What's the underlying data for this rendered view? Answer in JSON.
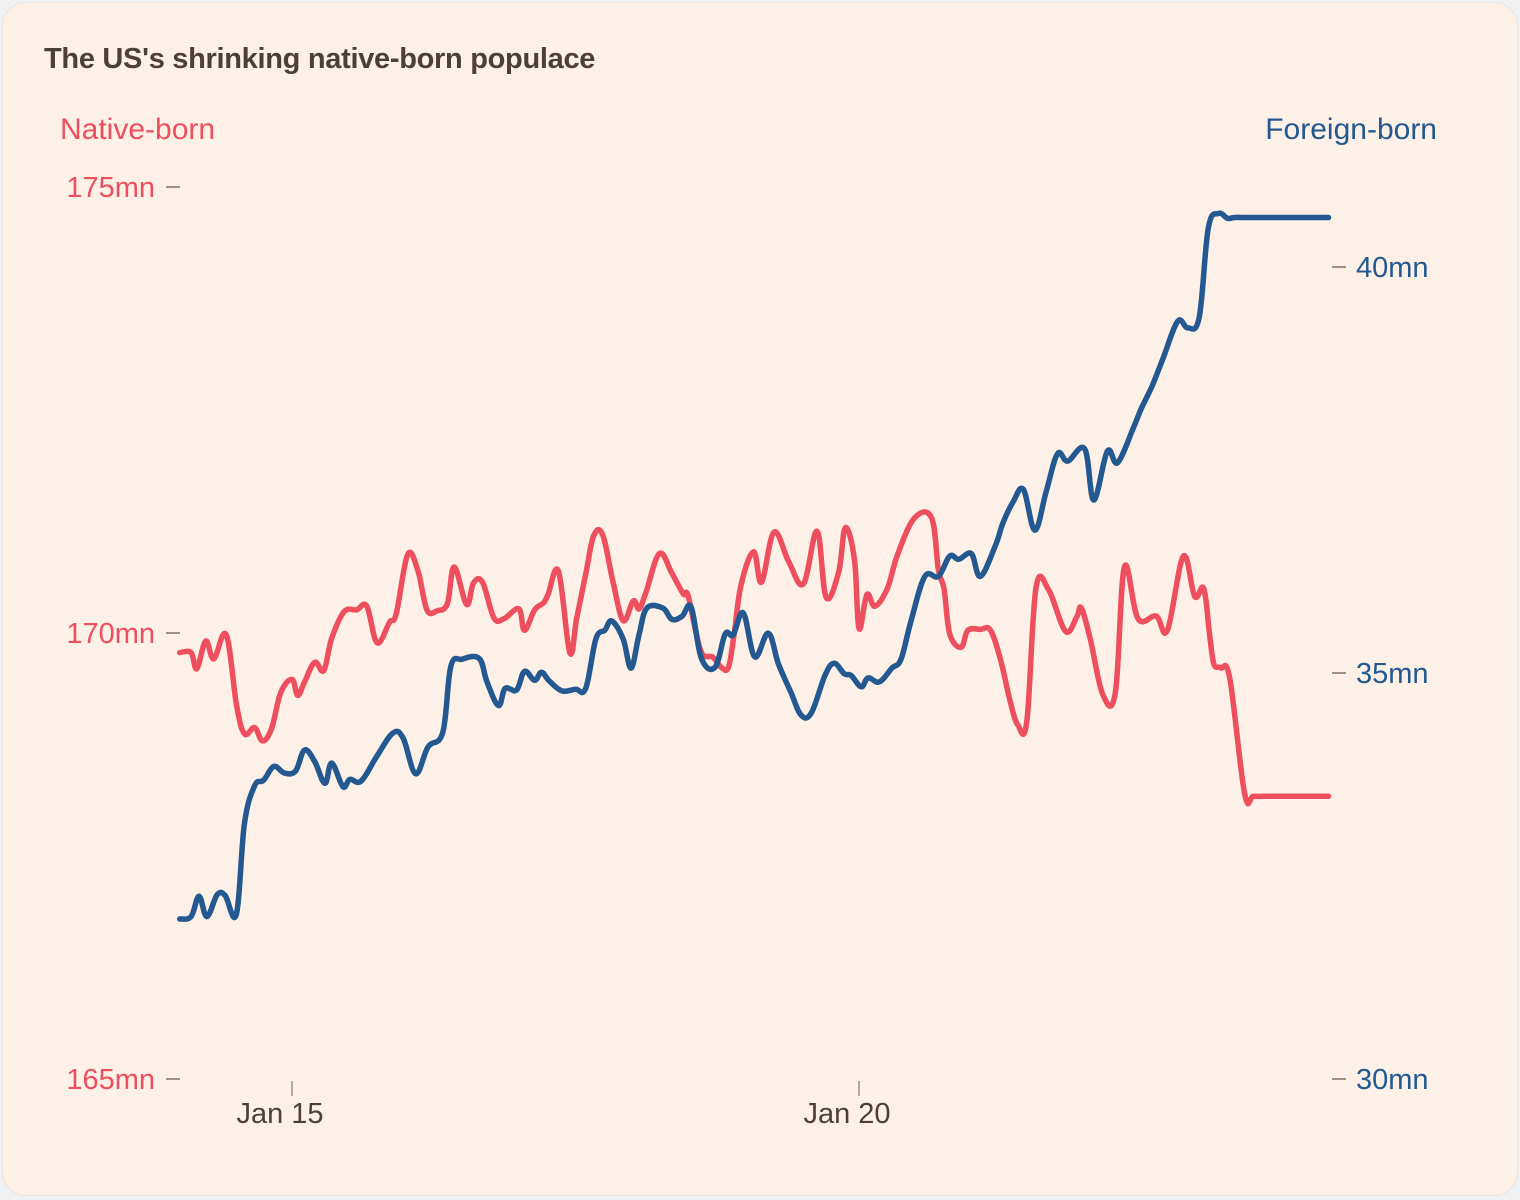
{
  "chart_data": {
    "type": "line",
    "title": "The US's shrinking native-born populace",
    "xlabel": "",
    "x_ticks": [
      "Jan 15",
      "Jan 20"
    ],
    "x_tick_days": [
      0,
      5
    ],
    "x_range_days": [
      -0.99,
      9.14
    ],
    "left_axis": {
      "label": "Native-born",
      "ticks": [
        "175mn",
        "170mn",
        "165mn"
      ],
      "tick_values": [
        175,
        170,
        165
      ],
      "ylim": [
        165,
        175
      ],
      "color": "#ee4f5e"
    },
    "right_axis": {
      "label": "Foreign-born",
      "ticks": [
        "40mn",
        "35mn",
        "30mn"
      ],
      "tick_values": [
        40,
        35,
        30
      ],
      "ylim": [
        30,
        40
      ],
      "color": "#235891"
    },
    "grid": false,
    "x_unit": "days since Jan 15",
    "series": [
      {
        "name": "Native-born",
        "axis": "left",
        "color": "#ee4f5e",
        "x": [
          -0.99,
          -0.89,
          -0.84,
          -0.76,
          -0.69,
          -0.58,
          -0.49,
          -0.42,
          -0.33,
          -0.26,
          -0.18,
          -0.1,
          0.0,
          0.05,
          0.11,
          0.2,
          0.28,
          0.35,
          0.46,
          0.57,
          0.66,
          0.75,
          0.86,
          0.92,
          1.02,
          1.11,
          1.19,
          1.28,
          1.37,
          1.43,
          1.54,
          1.6,
          1.68,
          1.78,
          1.87,
          2.0,
          2.05,
          2.14,
          2.22,
          2.26,
          2.35,
          2.45,
          2.51,
          2.59,
          2.66,
          2.74,
          2.83,
          2.92,
          3.01,
          3.06,
          3.12,
          3.24,
          3.35,
          3.45,
          3.49,
          3.56,
          3.62,
          3.71,
          3.79,
          3.85,
          3.9,
          3.96,
          4.07,
          4.14,
          4.25,
          4.38,
          4.51,
          4.63,
          4.71,
          4.82,
          4.88,
          4.96,
          5.0,
          5.07,
          5.14,
          5.25,
          5.34,
          5.49,
          5.64,
          5.7,
          5.75,
          5.8,
          5.9,
          5.96,
          6.07,
          6.16,
          6.25,
          6.33,
          6.4,
          6.48,
          6.56,
          6.67,
          6.82,
          6.92,
          6.96,
          7.04,
          7.15,
          7.26,
          7.34,
          7.46,
          7.62,
          7.72,
          7.86,
          7.96,
          8.04,
          8.09,
          8.13,
          8.19,
          8.27,
          8.4,
          8.48,
          8.61,
          8.72,
          8.8,
          8.93,
          9.02,
          9.14
        ],
        "values": [
          169.78,
          169.78,
          169.6,
          169.91,
          169.71,
          169.98,
          169.2,
          168.87,
          168.94,
          168.79,
          168.93,
          169.33,
          169.48,
          169.3,
          169.45,
          169.67,
          169.58,
          169.94,
          170.24,
          170.26,
          170.3,
          169.89,
          170.12,
          170.22,
          170.88,
          170.7,
          170.26,
          170.25,
          170.33,
          170.74,
          170.32,
          170.56,
          170.57,
          170.17,
          170.16,
          170.27,
          170.03,
          170.26,
          170.34,
          170.44,
          170.69,
          169.78,
          170.16,
          170.66,
          171.09,
          171.1,
          170.58,
          170.14,
          170.36,
          170.27,
          170.45,
          170.89,
          170.67,
          170.44,
          170.43,
          170.02,
          169.76,
          169.73,
          169.61,
          169.62,
          170.0,
          170.54,
          170.91,
          170.57,
          171.13,
          170.8,
          170.55,
          171.14,
          170.4,
          170.68,
          171.18,
          170.82,
          170.05,
          170.43,
          170.3,
          170.5,
          170.88,
          171.29,
          171.29,
          170.71,
          170.49,
          169.99,
          169.84,
          170.03,
          170.04,
          170.03,
          169.69,
          169.25,
          168.97,
          169.01,
          170.5,
          170.49,
          170.02,
          170.18,
          170.28,
          169.93,
          169.31,
          169.33,
          170.74,
          170.16,
          170.19,
          170.03,
          170.86,
          170.41,
          170.5,
          170.0,
          169.65,
          169.61,
          169.49,
          168.2,
          168.17,
          168.17,
          168.17,
          168.17,
          168.17,
          168.17,
          168.17
        ]
      },
      {
        "name": "Foreign-born",
        "axis": "right",
        "color": "#235891",
        "x": [
          -0.99,
          -0.89,
          -0.82,
          -0.75,
          -0.66,
          -0.59,
          -0.49,
          -0.42,
          -0.33,
          -0.25,
          -0.16,
          -0.07,
          0.03,
          0.11,
          0.2,
          0.29,
          0.35,
          0.45,
          0.51,
          0.61,
          0.75,
          0.89,
          0.98,
          1.09,
          1.2,
          1.33,
          1.4,
          1.5,
          1.65,
          1.72,
          1.82,
          1.88,
          1.98,
          2.05,
          2.14,
          2.2,
          2.27,
          2.38,
          2.5,
          2.59,
          2.68,
          2.76,
          2.82,
          2.92,
          2.99,
          3.06,
          3.13,
          3.27,
          3.35,
          3.44,
          3.52,
          3.61,
          3.73,
          3.82,
          3.89,
          3.98,
          4.08,
          4.2,
          4.29,
          4.4,
          4.49,
          4.58,
          4.7,
          4.78,
          4.87,
          4.93,
          5.02,
          5.08,
          5.18,
          5.29,
          5.37,
          5.46,
          5.58,
          5.7,
          5.8,
          5.88,
          5.99,
          6.07,
          6.2,
          6.27,
          6.36,
          6.45,
          6.55,
          6.65,
          6.75,
          6.84,
          6.99,
          7.07,
          7.19,
          7.28,
          7.42,
          7.49,
          7.58,
          7.68,
          7.81,
          7.9,
          8.0,
          8.08,
          8.17,
          8.25,
          8.31,
          8.4,
          8.5,
          8.62,
          8.71,
          8.83,
          8.92,
          9.02,
          9.14
        ],
        "values": [
          31.97,
          32.0,
          32.25,
          32.0,
          32.27,
          32.26,
          32.03,
          33.14,
          33.61,
          33.68,
          33.85,
          33.77,
          33.79,
          34.05,
          33.91,
          33.64,
          33.89,
          33.6,
          33.69,
          33.67,
          33.98,
          34.26,
          34.2,
          33.76,
          34.09,
          34.27,
          35.08,
          35.17,
          35.18,
          34.89,
          34.6,
          34.81,
          34.79,
          35.02,
          34.91,
          35.01,
          34.9,
          34.78,
          34.8,
          34.81,
          35.42,
          35.53,
          35.64,
          35.42,
          35.06,
          35.47,
          35.8,
          35.8,
          35.66,
          35.7,
          35.81,
          35.18,
          35.07,
          35.48,
          35.47,
          35.74,
          35.2,
          35.49,
          35.11,
          34.76,
          34.48,
          34.51,
          34.97,
          35.12,
          34.99,
          34.97,
          34.83,
          34.94,
          34.89,
          35.06,
          35.17,
          35.65,
          36.19,
          36.19,
          36.44,
          36.4,
          36.47,
          36.19,
          36.56,
          36.85,
          37.11,
          37.26,
          36.76,
          37.23,
          37.7,
          37.61,
          37.76,
          37.13,
          37.73,
          37.59,
          38.02,
          38.26,
          38.52,
          38.87,
          39.33,
          39.25,
          39.38,
          40.48,
          40.66,
          40.6,
          40.61,
          40.61,
          40.61,
          40.61,
          40.61,
          40.61,
          40.61,
          40.61,
          40.61
        ]
      }
    ]
  }
}
